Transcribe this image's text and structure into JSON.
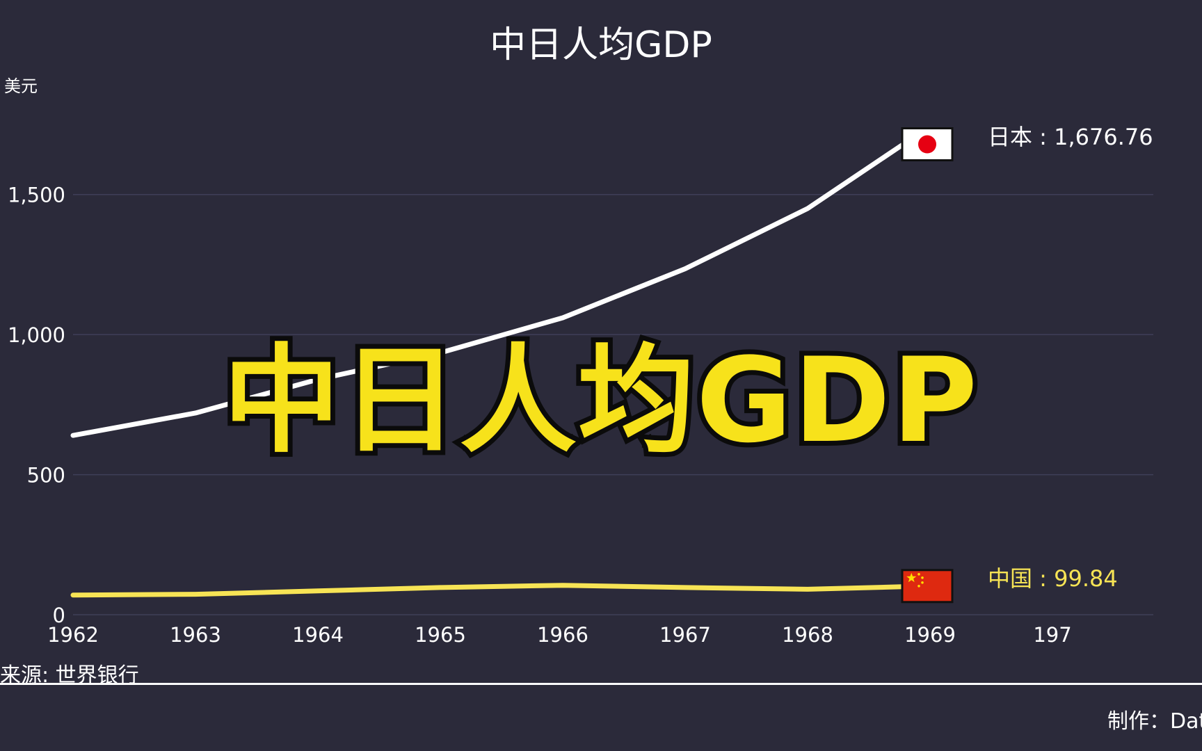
{
  "chart_data": {
    "type": "line",
    "title": "中日人均GDP",
    "ylabel": "美元",
    "x": [
      1962,
      1963,
      1964,
      1965,
      1966,
      1967,
      1968,
      1969
    ],
    "x_tick_labels": [
      "1962",
      "1963",
      "1964",
      "1965",
      "1966",
      "1967",
      "1968",
      "1969",
      "197"
    ],
    "y_ticks": [
      0,
      500,
      1000,
      1500
    ],
    "y_tick_labels": [
      "0",
      "500",
      "1,000",
      "1,500"
    ],
    "ylim": [
      0,
      1750
    ],
    "grid": true,
    "series": [
      {
        "name": "日本",
        "values": [
          640,
          720,
          840,
          935,
          1060,
          1235,
          1450,
          1676.76
        ],
        "end_label": "日本 : 1,676.76",
        "color": "#ffffff",
        "flag": "japan-flag"
      },
      {
        "name": "中国",
        "values": [
          70,
          73,
          85,
          97,
          105,
          97,
          91,
          99.84
        ],
        "end_label": "中国 : 99.84",
        "color": "#f7e455",
        "flag": "china-flag"
      }
    ],
    "overlay_text": "中日人均GDP",
    "source": "来源: 世界银行",
    "credit": "制作：Dat"
  }
}
